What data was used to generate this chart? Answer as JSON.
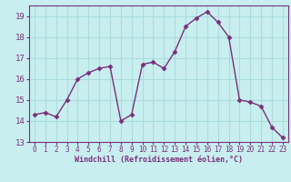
{
  "x": [
    0,
    1,
    2,
    3,
    4,
    5,
    6,
    7,
    8,
    9,
    10,
    11,
    12,
    13,
    14,
    15,
    16,
    17,
    18,
    19,
    20,
    21,
    22,
    23
  ],
  "y": [
    14.3,
    14.4,
    14.2,
    15.0,
    16.0,
    16.3,
    16.5,
    16.6,
    14.0,
    14.3,
    16.7,
    16.8,
    16.5,
    17.3,
    18.5,
    18.9,
    19.2,
    18.7,
    18.0,
    15.0,
    14.9,
    14.7,
    13.7,
    13.2
  ],
  "line_color": "#7b2f7b",
  "marker": "D",
  "marker_size": 2.5,
  "line_width": 1.0,
  "bg_color": "#c8eef0",
  "grid_color": "#aadddd",
  "xlabel": "Windchill (Refroidissement éolien,°C)",
  "xlabel_color": "#7b2f7b",
  "tick_color": "#7b2f7b",
  "ylim": [
    13.0,
    19.5
  ],
  "yticks": [
    13,
    14,
    15,
    16,
    17,
    18,
    19
  ],
  "xlim": [
    -0.5,
    23.5
  ],
  "xticks": [
    0,
    1,
    2,
    3,
    4,
    5,
    6,
    7,
    8,
    9,
    10,
    11,
    12,
    13,
    14,
    15,
    16,
    17,
    18,
    19,
    20,
    21,
    22,
    23
  ],
  "xlabel_fontsize": 6.0,
  "xtick_fontsize": 5.5,
  "ytick_fontsize": 6.5
}
